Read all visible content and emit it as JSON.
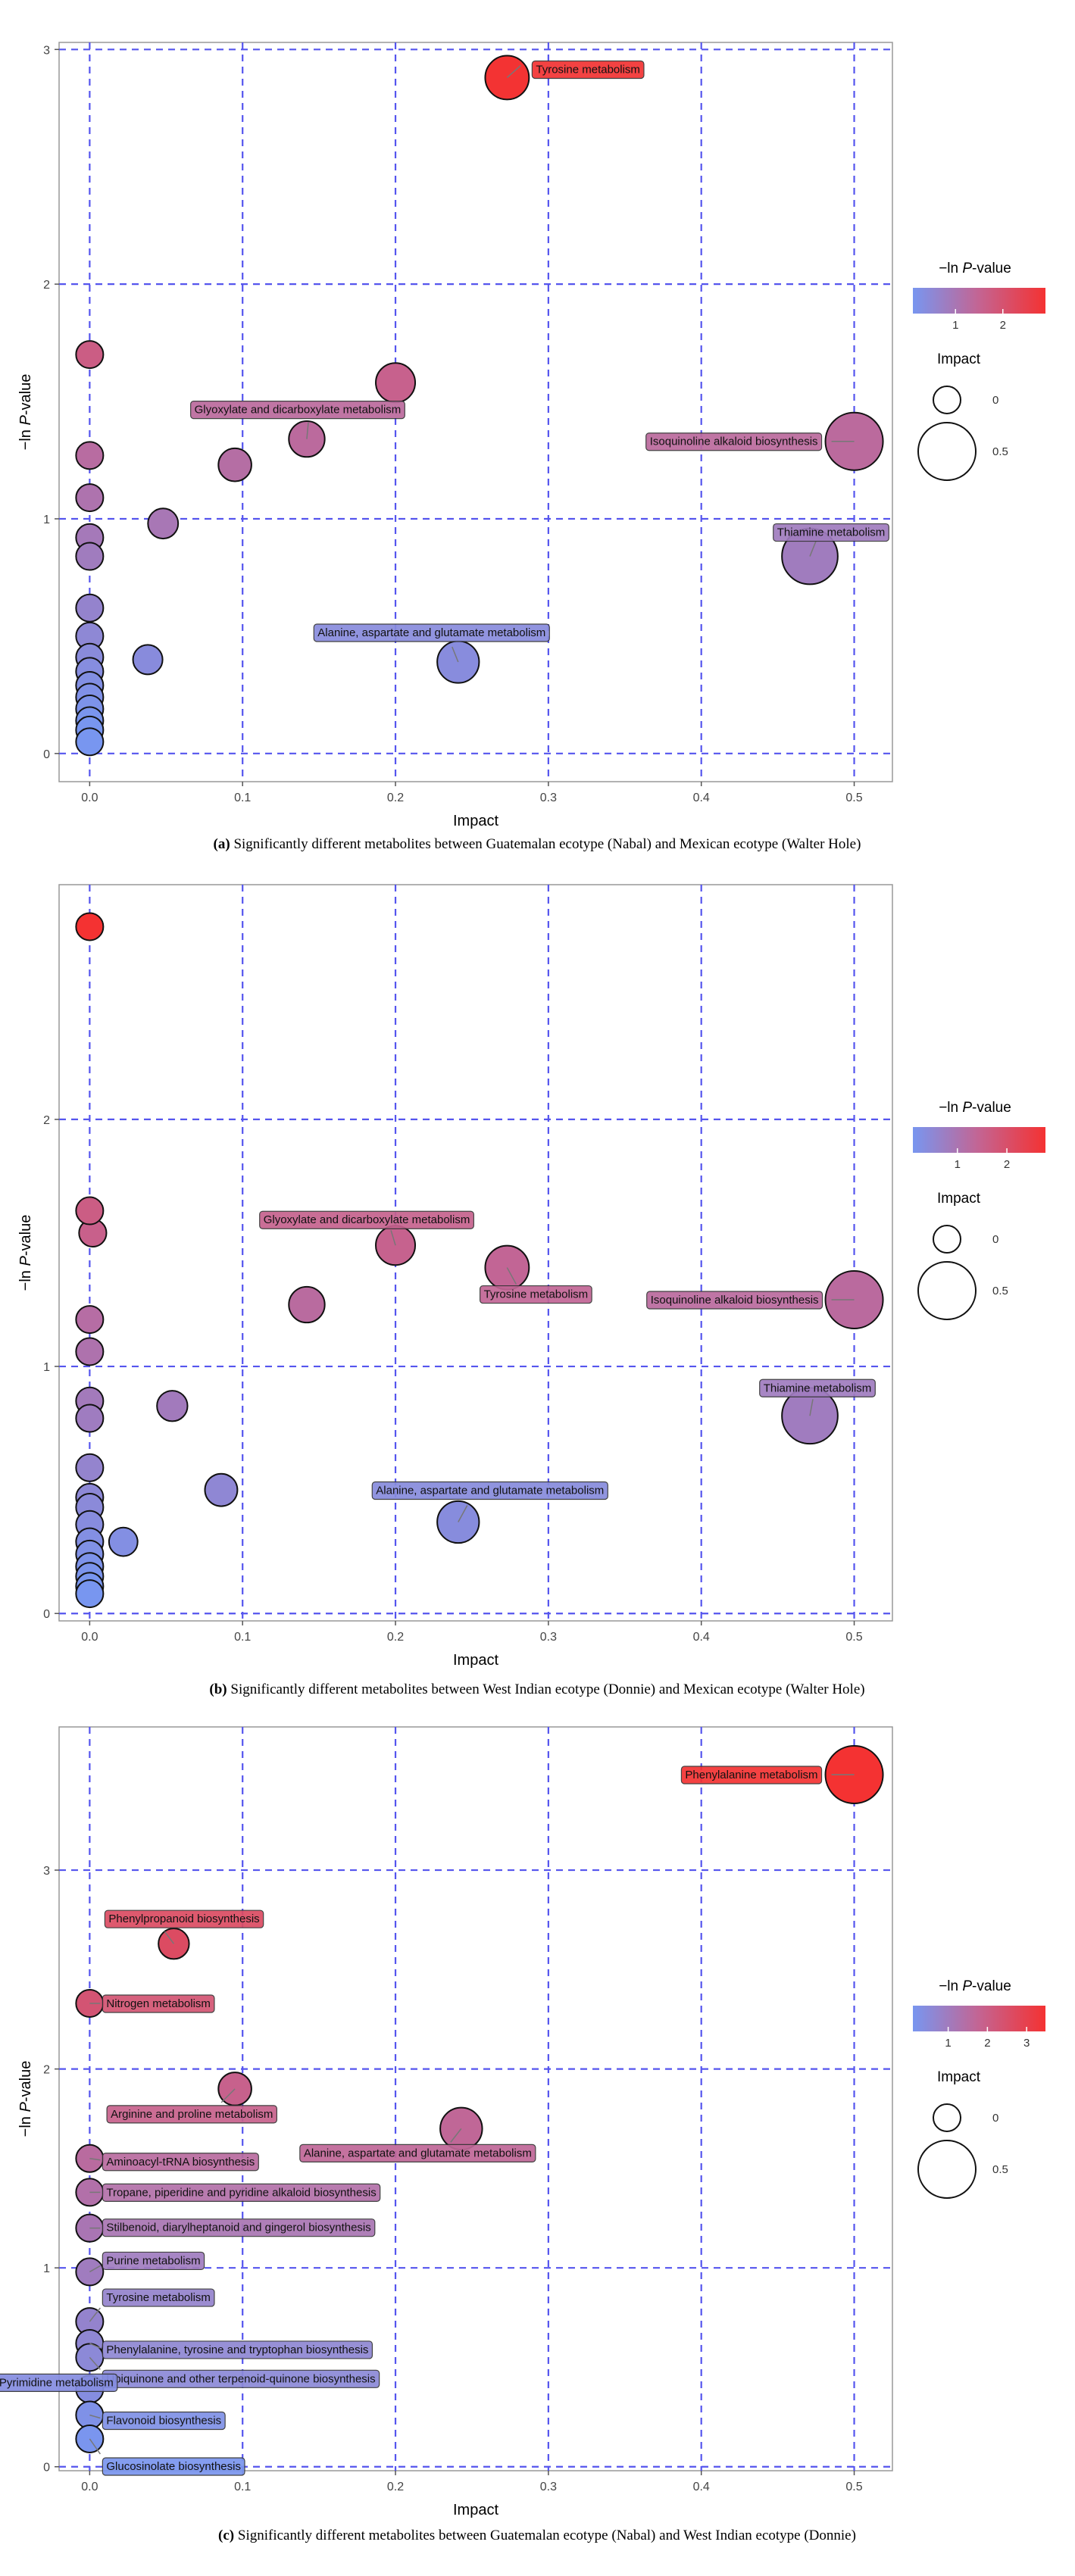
{
  "chart_data": [
    {
      "type": "scatter",
      "panel": "a",
      "caption_prefix": "(a)",
      "caption": "Significantly different metabolites between Guatemalan ecotype (Nabal) and Mexican ecotype (Walter Hole)",
      "xlabel": "Impact",
      "ylabel_main": "−ln ",
      "ylabel_italic": "P",
      "ylabel_suffix": "-value",
      "xlim": [
        -0.02,
        0.525
      ],
      "ylim": [
        -0.12,
        3.03
      ],
      "xticks": [
        0.0,
        0.1,
        0.2,
        0.3,
        0.4,
        0.5
      ],
      "xtick_labels": [
        "0.0",
        "0.1",
        "0.2",
        "0.3",
        "0.4",
        "0.5"
      ],
      "yticks": [
        0,
        1,
        2,
        3
      ],
      "ytick_labels": [
        "0",
        "1",
        "2",
        "3"
      ],
      "color_legend": {
        "title_main": "−ln ",
        "title_italic": "P",
        "title_suffix": "-value",
        "min": 0.1,
        "max": 2.9,
        "ticks": [
          1,
          2
        ],
        "tick_labels": [
          "1",
          "2"
        ]
      },
      "size_legend": {
        "title": "Impact",
        "values": [
          0,
          0.5
        ],
        "labels": [
          "0",
          "0.5"
        ]
      },
      "points": [
        {
          "x": 0.273,
          "y": 2.88,
          "label": "Tyrosine metabolism"
        },
        {
          "x": 0.2,
          "y": 1.58
        },
        {
          "x": 0.142,
          "y": 1.34,
          "label": "Glyoxylate and dicarboxylate metabolism"
        },
        {
          "x": 0.095,
          "y": 1.23
        },
        {
          "x": 0.048,
          "y": 0.98
        },
        {
          "x": 0.038,
          "y": 0.4
        },
        {
          "x": 0.5,
          "y": 1.33,
          "label": "Isoquinoline alkaloid biosynthesis"
        },
        {
          "x": 0.471,
          "y": 0.84,
          "label": "Thiamine metabolism"
        },
        {
          "x": 0.241,
          "y": 0.39,
          "label": "Alanine, aspartate and glutamate metabolism"
        },
        {
          "x": 0.0,
          "y": 1.7
        },
        {
          "x": 0.0,
          "y": 1.27
        },
        {
          "x": 0.0,
          "y": 1.09
        },
        {
          "x": 0.0,
          "y": 0.92
        },
        {
          "x": 0.0,
          "y": 0.84
        },
        {
          "x": 0.0,
          "y": 0.62
        },
        {
          "x": 0.0,
          "y": 0.5
        },
        {
          "x": 0.0,
          "y": 0.41
        },
        {
          "x": 0.0,
          "y": 0.35
        },
        {
          "x": 0.0,
          "y": 0.29
        },
        {
          "x": 0.0,
          "y": 0.24
        },
        {
          "x": 0.0,
          "y": 0.19
        },
        {
          "x": 0.0,
          "y": 0.14
        },
        {
          "x": 0.0,
          "y": 0.1
        },
        {
          "x": 0.0,
          "y": 0.05
        }
      ]
    },
    {
      "type": "scatter",
      "panel": "b",
      "caption_prefix": "(b)",
      "caption": "Significantly different metabolites between West Indian ecotype (Donnie) and Mexican ecotype (Walter Hole)",
      "xlabel": "Impact",
      "ylabel_main": "−ln ",
      "ylabel_italic": "P",
      "ylabel_suffix": "-value",
      "xlim": [
        -0.02,
        0.525
      ],
      "ylim": [
        -0.03,
        2.95
      ],
      "xticks": [
        0.0,
        0.1,
        0.2,
        0.3,
        0.4,
        0.5
      ],
      "xtick_labels": [
        "0.0",
        "0.1",
        "0.2",
        "0.3",
        "0.4",
        "0.5"
      ],
      "yticks": [
        0,
        1,
        2
      ],
      "ytick_labels": [
        "0",
        "1",
        "2"
      ],
      "color_legend": {
        "title_main": "−ln ",
        "title_italic": "P",
        "title_suffix": "-value",
        "min": 0.1,
        "max": 2.78,
        "ticks": [
          1,
          2
        ],
        "tick_labels": [
          "1",
          "2"
        ]
      },
      "size_legend": {
        "title": "Impact",
        "values": [
          0,
          0.5
        ],
        "labels": [
          "0",
          "0.5"
        ]
      },
      "points": [
        {
          "x": 0.0,
          "y": 2.78
        },
        {
          "x": 0.2,
          "y": 1.49,
          "label": "Glyoxylate and dicarboxylate metabolism"
        },
        {
          "x": 0.273,
          "y": 1.4,
          "label": "Tyrosine metabolism"
        },
        {
          "x": 0.142,
          "y": 1.25
        },
        {
          "x": 0.5,
          "y": 1.27,
          "label": "Isoquinoline alkaloid biosynthesis"
        },
        {
          "x": 0.471,
          "y": 0.8,
          "label": "Thiamine metabolism"
        },
        {
          "x": 0.054,
          "y": 0.84
        },
        {
          "x": 0.086,
          "y": 0.5
        },
        {
          "x": 0.241,
          "y": 0.37,
          "label": "Alanine, aspartate and glutamate metabolism"
        },
        {
          "x": 0.022,
          "y": 0.29
        },
        {
          "x": 0.0,
          "y": 1.63
        },
        {
          "x": 0.002,
          "y": 1.54
        },
        {
          "x": 0.0,
          "y": 1.19
        },
        {
          "x": 0.0,
          "y": 1.06
        },
        {
          "x": 0.0,
          "y": 0.86
        },
        {
          "x": 0.0,
          "y": 0.79
        },
        {
          "x": 0.0,
          "y": 0.59
        },
        {
          "x": 0.0,
          "y": 0.47
        },
        {
          "x": 0.0,
          "y": 0.43
        },
        {
          "x": 0.0,
          "y": 0.36
        },
        {
          "x": 0.0,
          "y": 0.29
        },
        {
          "x": 0.0,
          "y": 0.24
        },
        {
          "x": 0.0,
          "y": 0.19
        },
        {
          "x": 0.0,
          "y": 0.15
        },
        {
          "x": 0.0,
          "y": 0.11
        },
        {
          "x": 0.0,
          "y": 0.08
        }
      ]
    },
    {
      "type": "scatter",
      "panel": "c",
      "caption_prefix": "(c)",
      "caption": "Significantly different metabolites between Guatemalan ecotype (Nabal) and West Indian ecotype (Donnie)",
      "xlabel": "Impact",
      "ylabel_main": "−ln ",
      "ylabel_italic": "P",
      "ylabel_suffix": "-value",
      "xlim": [
        -0.02,
        0.525
      ],
      "ylim": [
        -0.02,
        3.72
      ],
      "xticks": [
        0.0,
        0.1,
        0.2,
        0.3,
        0.4,
        0.5
      ],
      "xtick_labels": [
        "0.0",
        "0.1",
        "0.2",
        "0.3",
        "0.4",
        "0.5"
      ],
      "yticks": [
        0,
        1,
        2,
        3
      ],
      "ytick_labels": [
        "0",
        "1",
        "2",
        "3"
      ],
      "color_legend": {
        "title_main": "−ln ",
        "title_italic": "P",
        "title_suffix": "-value",
        "min": 0.1,
        "max": 3.48,
        "ticks": [
          1,
          2,
          3
        ],
        "tick_labels": [
          "1",
          "2",
          "3"
        ]
      },
      "size_legend": {
        "title": "Impact",
        "values": [
          0,
          0.5
        ],
        "labels": [
          "0",
          "0.5"
        ]
      },
      "points": [
        {
          "x": 0.5,
          "y": 3.48,
          "label": "Phenylalanine metabolism"
        },
        {
          "x": 0.055,
          "y": 2.63,
          "label": "Phenylpropanoid biosynthesis"
        },
        {
          "x": 0.0,
          "y": 2.33,
          "label": "Nitrogen metabolism"
        },
        {
          "x": 0.095,
          "y": 1.9,
          "label": "Arginine and proline metabolism"
        },
        {
          "x": 0.243,
          "y": 1.7,
          "label": "Alanine, aspartate and glutamate metabolism"
        },
        {
          "x": 0.0,
          "y": 1.55,
          "label": "Aminoacyl-tRNA biosynthesis"
        },
        {
          "x": 0.0,
          "y": 1.38,
          "label": "Tropane, piperidine and pyridine alkaloid biosynthesis"
        },
        {
          "x": 0.0,
          "y": 1.2,
          "label": "Stilbenoid, diarylheptanoid and gingerol biosynthesis"
        },
        {
          "x": 0.0,
          "y": 0.98,
          "label": "Purine metabolism"
        },
        {
          "x": 0.0,
          "y": 0.73,
          "label": "Tyrosine metabolism"
        },
        {
          "x": 0.0,
          "y": 0.62,
          "label": "Phenylalanine, tyrosine and tryptophan biosynthesis"
        },
        {
          "x": 0.0,
          "y": 0.55,
          "label": "Ubiquinone and other terpenoid-quinone biosynthesis"
        },
        {
          "x": 0.0,
          "y": 0.39,
          "label": "Pyrimidine metabolism"
        },
        {
          "x": 0.0,
          "y": 0.26,
          "label": "Flavonoid biosynthesis"
        },
        {
          "x": 0.0,
          "y": 0.14,
          "label": "Glucosinolate biosynthesis"
        }
      ]
    }
  ]
}
